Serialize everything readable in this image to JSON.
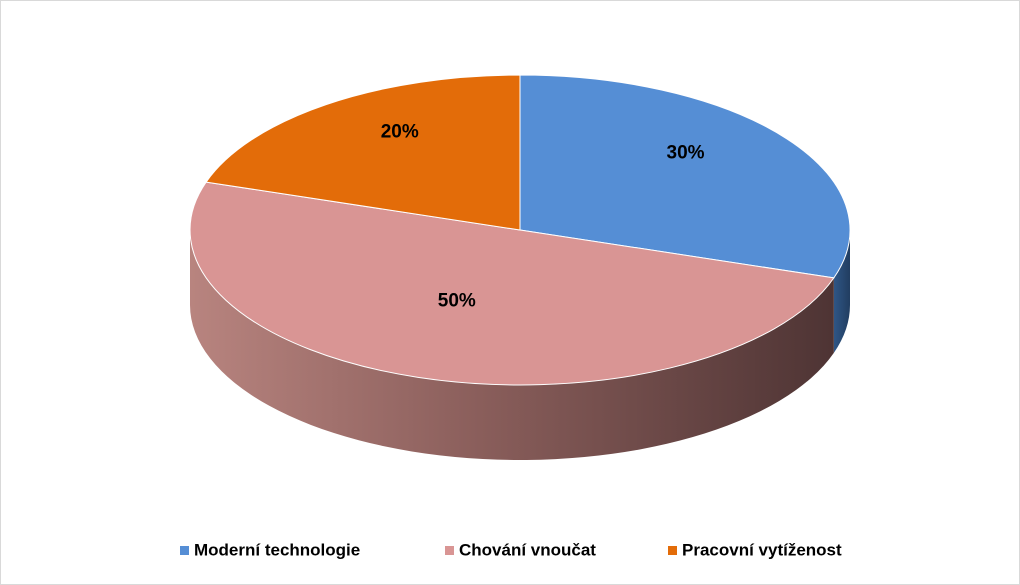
{
  "chart_data": {
    "type": "pie",
    "categories": [
      "Moderní technologie",
      "Chování vnoučat",
      "Pracovní vytíženost"
    ],
    "values": [
      30,
      50,
      20
    ],
    "value_labels": [
      "30%",
      "50%",
      "20%"
    ],
    "colors": [
      "#558ed5",
      "#d99594",
      "#e36c09"
    ],
    "legend": "bottom"
  }
}
